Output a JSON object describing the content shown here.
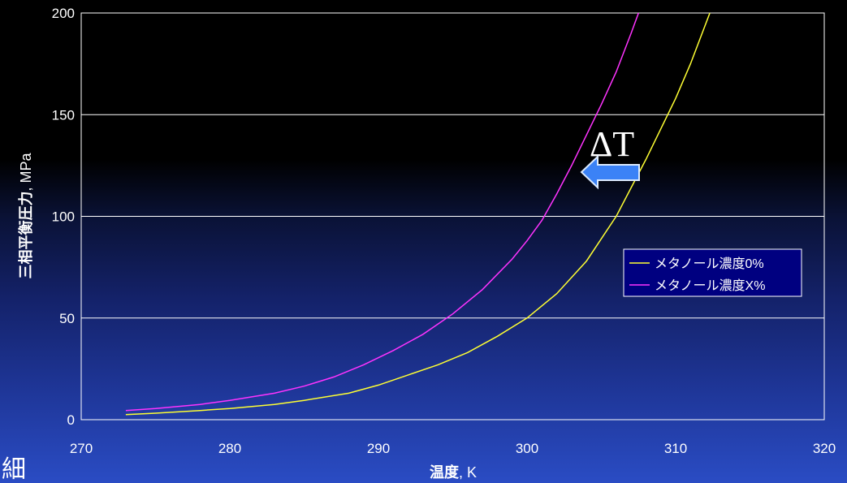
{
  "chart_data": {
    "type": "line",
    "xlabel": "温度, K",
    "xlabel_bold": "温度",
    "xlabel_rest": ", K",
    "ylabel": "三相平衡圧力, MPa",
    "ylabel_bold": "三相平衡圧力",
    "ylabel_rest": ", MPa",
    "xlim": [
      270,
      320
    ],
    "ylim": [
      0,
      200
    ],
    "xticks": [
      270,
      280,
      290,
      300,
      310,
      320
    ],
    "yticks": [
      0,
      50,
      100,
      150,
      200
    ],
    "grid": "horizontal",
    "legend_position": "right",
    "series": [
      {
        "name": "メタノール濃度0%",
        "color": "#ffff33",
        "x": [
          273,
          275,
          278,
          280,
          283,
          285,
          288,
          290,
          292,
          294,
          296,
          298,
          300,
          302,
          304,
          305,
          306,
          307,
          308,
          309,
          310,
          311,
          312.3
        ],
        "values": [
          2.5,
          3.2,
          4.5,
          5.5,
          7.5,
          9.5,
          13,
          17,
          22,
          27,
          33,
          41,
          50,
          62,
          78,
          89,
          100,
          114,
          128,
          143,
          158,
          175,
          200
        ]
      },
      {
        "name": "メタノール濃度X%",
        "color": "#ff33ff",
        "x": [
          273,
          275,
          278,
          280,
          283,
          285,
          287,
          289,
          291,
          293,
          295,
          297,
          299,
          300,
          301,
          302,
          303,
          304,
          305,
          306,
          307,
          307.5
        ],
        "values": [
          4.5,
          5.5,
          7.5,
          9.5,
          13,
          16.5,
          21,
          27,
          34,
          42,
          52,
          64,
          79,
          88,
          98,
          111,
          125,
          140,
          155,
          171,
          190,
          200
        ]
      }
    ],
    "annotation": {
      "text": "ΔT",
      "arrow_direction": "left",
      "arrow_color": "#3b82f6"
    }
  },
  "corner_glyph": "細"
}
